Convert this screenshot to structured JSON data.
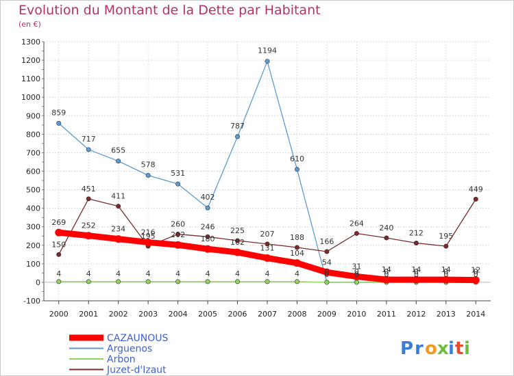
{
  "chart_data": {
    "type": "line",
    "title": "Evolution du Montant de la Dette par Habitant",
    "subtitle": "(en €)",
    "xlabel": "",
    "ylabel": "",
    "ylim": [
      -100,
      1300
    ],
    "y_ticks": [
      -100,
      0,
      100,
      200,
      300,
      400,
      500,
      600,
      700,
      800,
      900,
      1000,
      1100,
      1200,
      1300
    ],
    "categories": [
      "2000",
      "2001",
      "2002",
      "2003",
      "2004",
      "2005",
      "2006",
      "2007",
      "2008",
      "2009",
      "2010",
      "2011",
      "2012",
      "2013",
      "2014"
    ],
    "grid": true,
    "legend_position": "bottom-left",
    "series": [
      {
        "name": "CAZAUNOUS",
        "color": "#ff0000",
        "values": [
          269,
          252,
          234,
          216,
          202,
          180,
          162,
          131,
          104,
          54,
          31,
          14,
          14,
          14,
          12
        ],
        "labels": [
          "269",
          "252",
          "234",
          "216",
          "202",
          "180",
          "162",
          "131",
          "104",
          "54",
          "31",
          "14",
          "14",
          "14",
          "12"
        ]
      },
      {
        "name": "Arguenos",
        "color": "#5c9ad0",
        "values": [
          859,
          717,
          655,
          578,
          531,
          402,
          787,
          1194,
          610,
          0,
          0,
          0,
          0,
          0,
          0
        ],
        "labels": [
          "859",
          "717",
          "655",
          "578",
          "531",
          "402",
          "787",
          "1194",
          "610",
          "0",
          "0",
          "0",
          "0",
          "0",
          "0"
        ]
      },
      {
        "name": "Arbon",
        "color": "#8ed45c",
        "values": [
          4,
          4,
          4,
          4,
          4,
          4,
          4,
          4,
          4,
          0,
          0,
          0,
          0,
          0,
          0
        ],
        "labels": [
          "4",
          "4",
          "4",
          "4",
          "4",
          "4",
          "4",
          "4",
          "4",
          "0",
          "0",
          "0",
          "0",
          "0",
          "0"
        ]
      },
      {
        "name": "Juzet-d'Izaut",
        "color": "#7a2a2a",
        "values": [
          150,
          451,
          411,
          195,
          260,
          246,
          225,
          207,
          188,
          166,
          264,
          240,
          212,
          195,
          449
        ],
        "labels": [
          "150",
          "451",
          "411",
          "195",
          "260",
          "246",
          "225",
          "207",
          "188",
          "166",
          "264",
          "240",
          "212",
          "195",
          "449"
        ]
      }
    ]
  },
  "logo": {
    "text": "Proxiti",
    "colors": [
      "#3a7fd5",
      "#3a7fd5",
      "#f29a1f",
      "#6bbf3a",
      "#3a7fd5",
      "#e84a2c",
      "#6bbf3a"
    ]
  }
}
